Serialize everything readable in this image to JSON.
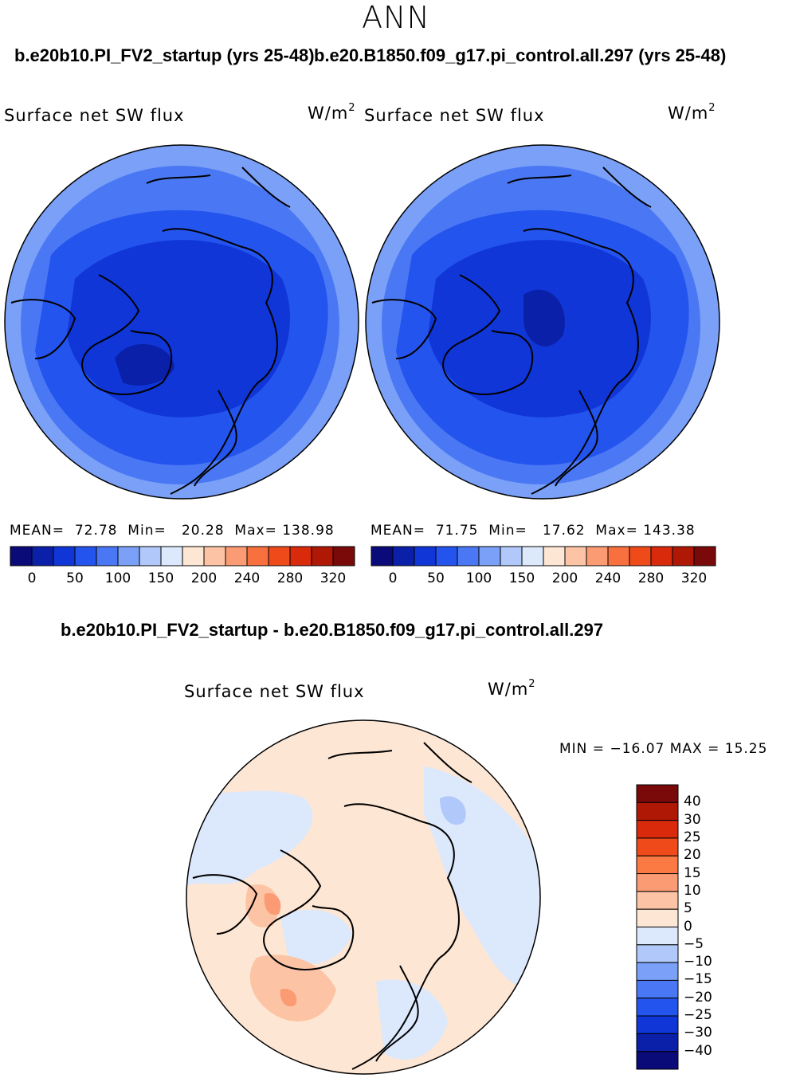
{
  "main_title": "ANN",
  "panel_left": {
    "case": "b.e20b10.PI_FV2_startup (yrs 25-48)",
    "variable": "Surface net SW flux",
    "units": "W/m",
    "units_exp": "2",
    "stats": {
      "mean_label": "MEAN=",
      "mean": "72.78",
      "min_label": "Min=",
      "min": "20.28",
      "max_label": "Max=",
      "max": "138.98"
    }
  },
  "panel_right": {
    "case": "b.e20.B1850.f09_g17.pi_control.all.297 (yrs 25-48)",
    "variable": "Surface net SW flux",
    "units": "W/m",
    "units_exp": "2",
    "stats": {
      "mean_label": "MEAN=",
      "mean": "71.75",
      "min_label": "Min=",
      "min": "17.62",
      "max_label": "Max=",
      "max": "143.38"
    }
  },
  "abs_colorbar": {
    "colors": [
      "#0a0a78",
      "#0b20a8",
      "#1036d8",
      "#2454ee",
      "#4a78f4",
      "#7aa0f7",
      "#b0c8fa",
      "#dce8fc",
      "#fde6d4",
      "#fcc4a4",
      "#fb9b74",
      "#f8703e",
      "#ef4a1a",
      "#d92a0c",
      "#b01806",
      "#7a0a0a"
    ],
    "tick_labels": [
      "0",
      "50",
      "100",
      "150",
      "200",
      "240",
      "280",
      "320"
    ]
  },
  "diff_panel": {
    "title": "b.e20b10.PI_FV2_startup - b.e20.B1850.f09_g17.pi_control.all.297",
    "variable": "Surface net SW flux",
    "units": "W/m",
    "units_exp": "2",
    "minmax_text": "MIN = −16.07 MAX =  15.25"
  },
  "diff_colorbar": {
    "colors": [
      "#7a0a0a",
      "#b01806",
      "#d92a0c",
      "#ef4a1a",
      "#fb7a44",
      "#fb9b74",
      "#fcc4a4",
      "#fde6d4",
      "#dce8fc",
      "#b0c8fa",
      "#7aa0f7",
      "#4a78f4",
      "#2454ee",
      "#1036d8",
      "#0b20a8",
      "#0a0a78"
    ],
    "tick_labels": [
      "40",
      "30",
      "25",
      "20",
      "15",
      "10",
      "5",
      "0",
      "−5",
      "−10",
      "−15",
      "−20",
      "−25",
      "−30",
      "−40"
    ]
  },
  "map_colors": {
    "ocean_abs": "#4a78f4",
    "mid_abs": "#2454ee",
    "dark_abs": "#1036d8",
    "deep_abs": "#0b20a8",
    "edge_abs": "#7aa0f7",
    "diff_base": "#fde6d4",
    "diff_blue": "#dce8fc",
    "diff_blue2": "#b0c8fa",
    "diff_red": "#fcc4a4",
    "diff_red2": "#fb9b74",
    "coast": "#000000"
  }
}
